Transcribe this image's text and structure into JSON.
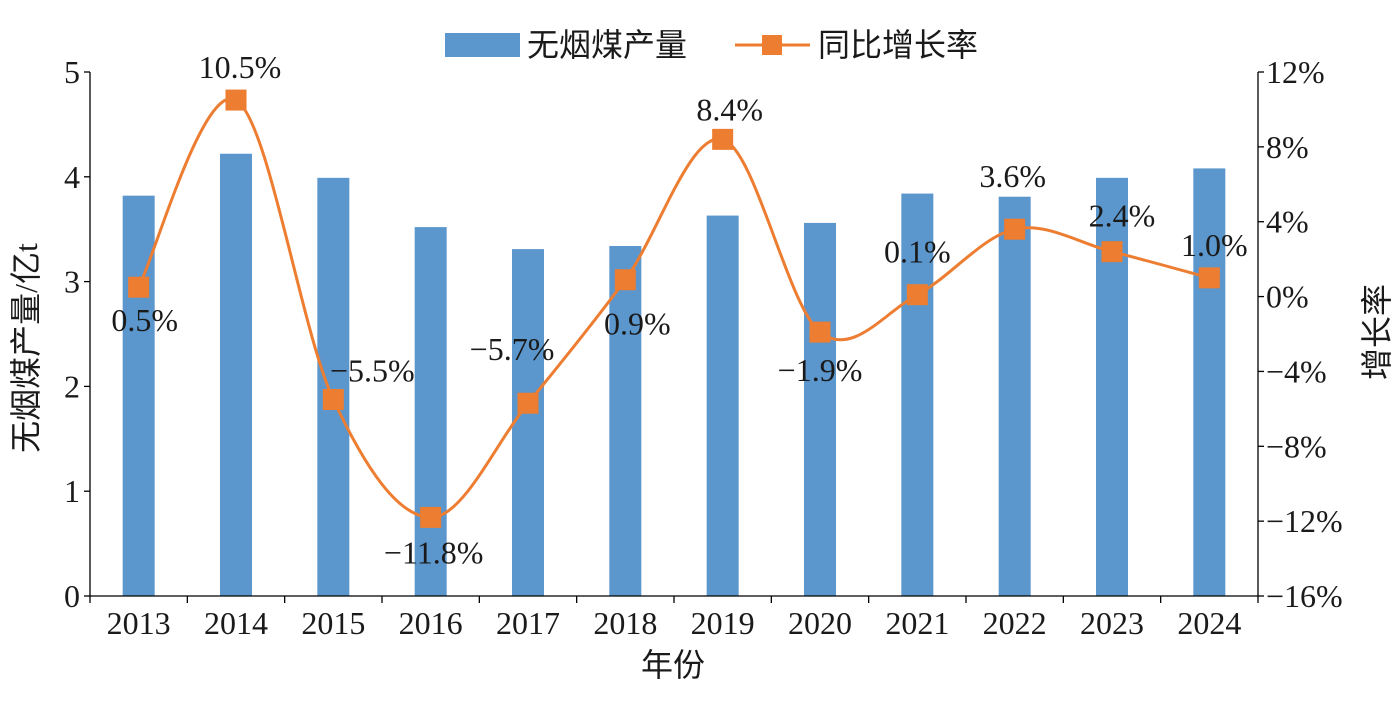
{
  "chart_data": {
    "type": "bar",
    "categories": [
      "2013",
      "2014",
      "2015",
      "2016",
      "2017",
      "2018",
      "2019",
      "2020",
      "2021",
      "2022",
      "2023",
      "2024"
    ],
    "series": [
      {
        "name": "无烟煤产量",
        "type": "bar",
        "axis": "left",
        "color": "#5B96CC",
        "values": [
          3.82,
          4.22,
          3.99,
          3.52,
          3.31,
          3.34,
          3.63,
          3.56,
          3.84,
          3.81,
          3.99,
          4.08
        ]
      },
      {
        "name": "同比增长率",
        "type": "line",
        "axis": "right",
        "color": "#ED7D31",
        "smooth": true,
        "marker": "square",
        "values": [
          0.5,
          10.5,
          -5.5,
          -11.8,
          -5.7,
          0.9,
          8.4,
          -1.9,
          0.1,
          3.6,
          2.4,
          1.0
        ],
        "data_labels": [
          "0.5%",
          "10.5%",
          "−5.5%",
          "−11.8%",
          "−5.7%",
          "0.9%",
          "8.4%",
          "−1.9%",
          "0.1%",
          "3.6%",
          "2.4%",
          "1.0%"
        ]
      }
    ],
    "xlabel": "年份",
    "ylabel": "无烟煤产量/亿t",
    "y2label": "增长率",
    "ylim": [
      0,
      5
    ],
    "y2lim": [
      -16,
      12
    ],
    "yticks": [
      0,
      1,
      2,
      3,
      4,
      5
    ],
    "ytick_labels": [
      "0",
      "1",
      "2",
      "3",
      "4",
      "5"
    ],
    "y2ticks": [
      -16,
      -12,
      -8,
      -4,
      0,
      4,
      8,
      12
    ],
    "y2tick_labels": [
      "−16%",
      "−12%",
      "−8%",
      "−4%",
      "0%",
      "4%",
      "8%",
      "12%"
    ],
    "legend": "top",
    "grid": false
  }
}
